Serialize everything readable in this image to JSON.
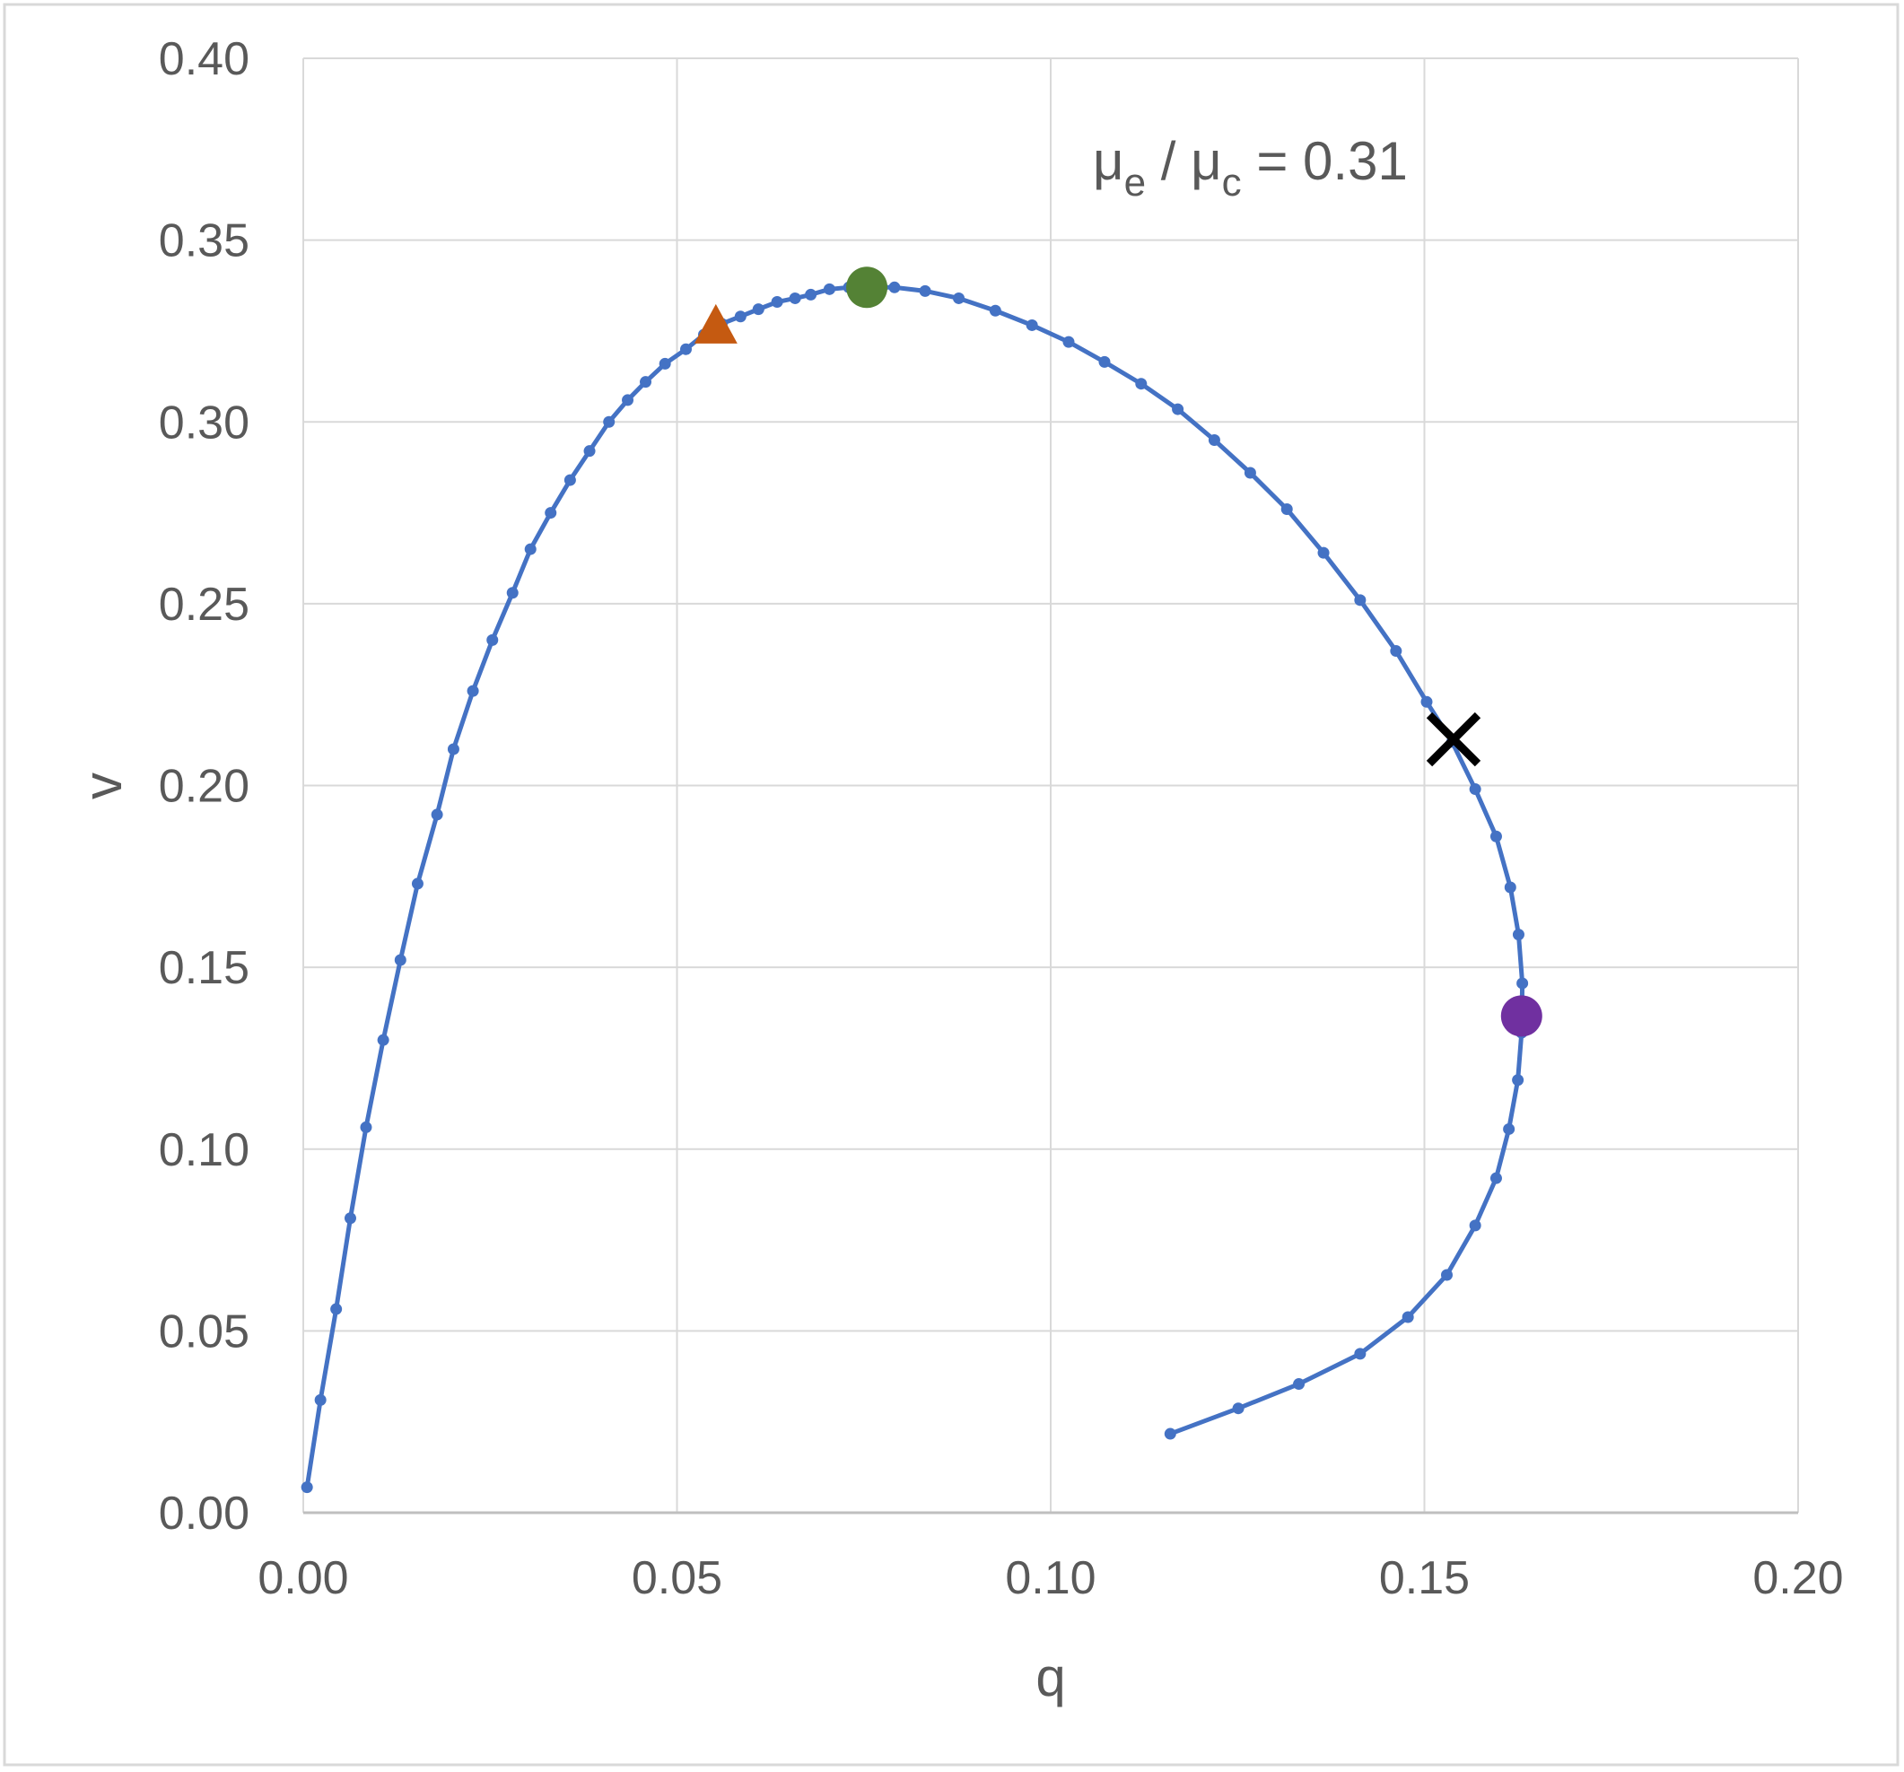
{
  "chart_data": {
    "type": "scatter",
    "title": "",
    "xlabel": "q",
    "ylabel": "v",
    "xlim": [
      0,
      0.2
    ],
    "ylim": [
      0,
      0.4
    ],
    "xticks": [
      "0.00",
      "0.05",
      "0.10",
      "0.15",
      "0.20"
    ],
    "yticks": [
      "0.00",
      "0.05",
      "0.10",
      "0.15",
      "0.20",
      "0.25",
      "0.30",
      "0.35",
      "0.40"
    ],
    "grid": true,
    "annotation": {
      "mu": "μ",
      "sub1": "e",
      "sep": " / ",
      "sub2": "c",
      "rest": " = 0.31"
    },
    "series_color": "#4472C4",
    "series": [
      {
        "x": [
          0.0005,
          0.0023,
          0.0044,
          0.0063,
          0.0084,
          0.0107,
          0.013,
          0.0153,
          0.0179,
          0.0201,
          0.0227,
          0.0253,
          0.028,
          0.0304,
          0.0331,
          0.0357,
          0.0383,
          0.0409,
          0.0434,
          0.0458,
          0.0484,
          0.0512,
          0.0536,
          0.056,
          0.0585,
          0.0609,
          0.0634,
          0.0658,
          0.0679,
          0.0704,
          0.073,
          0.0764,
          0.0791,
          0.0832,
          0.0877,
          0.0926,
          0.0975,
          0.1024,
          0.1072,
          0.1121,
          0.117,
          0.1219,
          0.1267,
          0.1316,
          0.1365,
          0.1414,
          0.1462,
          0.1503,
          0.1537,
          0.1568,
          0.1596,
          0.1615,
          0.1626,
          0.1631,
          0.163,
          0.1625,
          0.1613,
          0.1596,
          0.1568,
          0.153,
          0.1478,
          0.1414,
          0.1332,
          0.1251,
          0.116
        ],
        "y": [
          0.007,
          0.031,
          0.056,
          0.081,
          0.106,
          0.13,
          0.152,
          0.173,
          0.192,
          0.21,
          0.226,
          0.24,
          0.253,
          0.265,
          0.275,
          0.284,
          0.292,
          0.3,
          0.306,
          0.311,
          0.316,
          0.32,
          0.324,
          0.327,
          0.329,
          0.331,
          0.333,
          0.334,
          0.335,
          0.3365,
          0.337,
          0.337,
          0.337,
          0.336,
          0.334,
          0.3306,
          0.3266,
          0.322,
          0.3165,
          0.3105,
          0.3035,
          0.295,
          0.286,
          0.276,
          0.264,
          0.251,
          0.237,
          0.223,
          0.212,
          0.199,
          0.186,
          0.172,
          0.159,
          0.1456,
          0.132,
          0.119,
          0.1055,
          0.092,
          0.079,
          0.0654,
          0.0538,
          0.0437,
          0.0354,
          0.0287,
          0.0217
        ]
      }
    ],
    "markers": [
      {
        "shape": "triangle",
        "color": "#C55A11",
        "x": 0.0552,
        "y": 0.326
      },
      {
        "shape": "circle",
        "color": "#548235",
        "x": 0.0754,
        "y": 0.337
      },
      {
        "shape": "cross",
        "color": "#000000",
        "x": 0.1539,
        "y": 0.2127
      },
      {
        "shape": "circle",
        "color": "#7030A0",
        "x": 0.163,
        "y": 0.1366
      }
    ]
  }
}
